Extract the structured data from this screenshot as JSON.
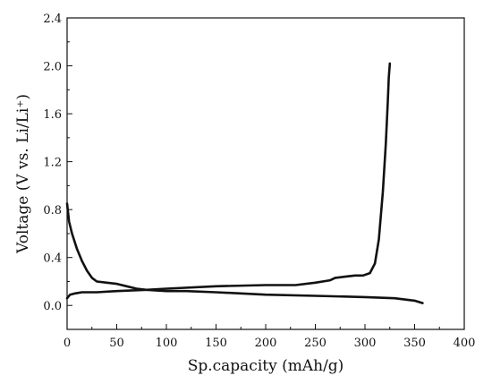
{
  "chart_data": {
    "type": "line",
    "xlabel": "Sp.capacity (mAh/g)",
    "ylabel": "Voltage (V vs. Li/Li⁺)",
    "xlim": [
      0,
      400
    ],
    "ylim": [
      -0.2,
      2.4
    ],
    "x_ticks": [
      "0",
      "50",
      "100",
      "150",
      "200",
      "250",
      "300",
      "350",
      "400"
    ],
    "y_ticks": [
      "0.0",
      "0.4",
      "0.8",
      "1.2",
      "1.6",
      "2.0",
      "2.4"
    ],
    "grid": false,
    "legend": "none",
    "line_color": "#111111",
    "series": [
      {
        "x": [
          0,
          2,
          5,
          10,
          15,
          20,
          25,
          30,
          40,
          50,
          60,
          70,
          80,
          100,
          120,
          150,
          200,
          250,
          300,
          330,
          350,
          358
        ],
        "y": [
          0.85,
          0.7,
          0.6,
          0.47,
          0.37,
          0.29,
          0.23,
          0.2,
          0.19,
          0.18,
          0.16,
          0.14,
          0.13,
          0.12,
          0.12,
          0.11,
          0.09,
          0.08,
          0.07,
          0.06,
          0.04,
          0.02
        ]
      },
      {
        "x": [
          0,
          3,
          8,
          15,
          30,
          50,
          80,
          100,
          150,
          200,
          230,
          250,
          265,
          270,
          280,
          290,
          298,
          305,
          310,
          314,
          318,
          321,
          323,
          324,
          325
        ],
        "y": [
          0.06,
          0.09,
          0.1,
          0.11,
          0.11,
          0.12,
          0.13,
          0.14,
          0.16,
          0.17,
          0.17,
          0.19,
          0.21,
          0.23,
          0.24,
          0.25,
          0.25,
          0.27,
          0.35,
          0.55,
          0.95,
          1.35,
          1.7,
          1.9,
          2.02
        ]
      }
    ]
  }
}
